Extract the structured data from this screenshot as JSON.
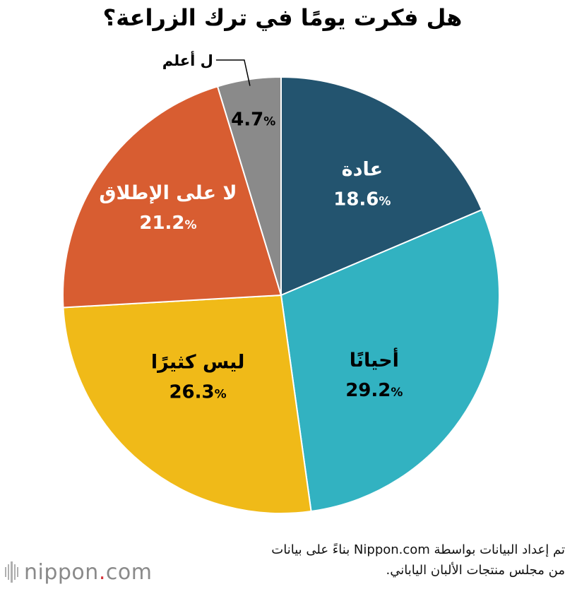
{
  "chart_data": {
    "type": "pie",
    "title": "هل فكرت يومًا في ترك الزراعة؟",
    "start_angle_deg": 0,
    "direction": "clockwise",
    "slices": [
      {
        "label": "عادة",
        "value": 18.6,
        "value_text": "18.6",
        "color": "#23546f",
        "label_color": "#ffffff",
        "label_position": "inside"
      },
      {
        "label": "أحيانًا",
        "value": 29.2,
        "value_text": "29.2",
        "color": "#32b2c1",
        "label_color": "#000000",
        "label_position": "inside"
      },
      {
        "label": "ليس كثيرًا",
        "value": 26.3,
        "value_text": "26.3",
        "color": "#f0ba18",
        "label_color": "#000000",
        "label_position": "inside"
      },
      {
        "label": "لا على الإطلاق",
        "value": 21.2,
        "value_text": "21.2",
        "color": "#d85d31",
        "label_color": "#ffffff",
        "label_position": "inside"
      },
      {
        "label": "ل أعلم",
        "value": 4.7,
        "value_text": "4.7",
        "color": "#8a8a8a",
        "label_color": "#000000",
        "label_position": "outside"
      }
    ],
    "percent_symbol": "%"
  },
  "source": {
    "line1": "تم إعداد البيانات بواسطة Nippon.com بناءً على بيانات",
    "line2": "من مجلس منتجات الألبان الياباني."
  },
  "brand": {
    "name_start": "nippon",
    "dot": ".",
    "name_end": "com"
  },
  "colors": {
    "separator": "#ffffff",
    "brand_text": "#8a8a8a",
    "brand_dot": "#d6343a"
  }
}
